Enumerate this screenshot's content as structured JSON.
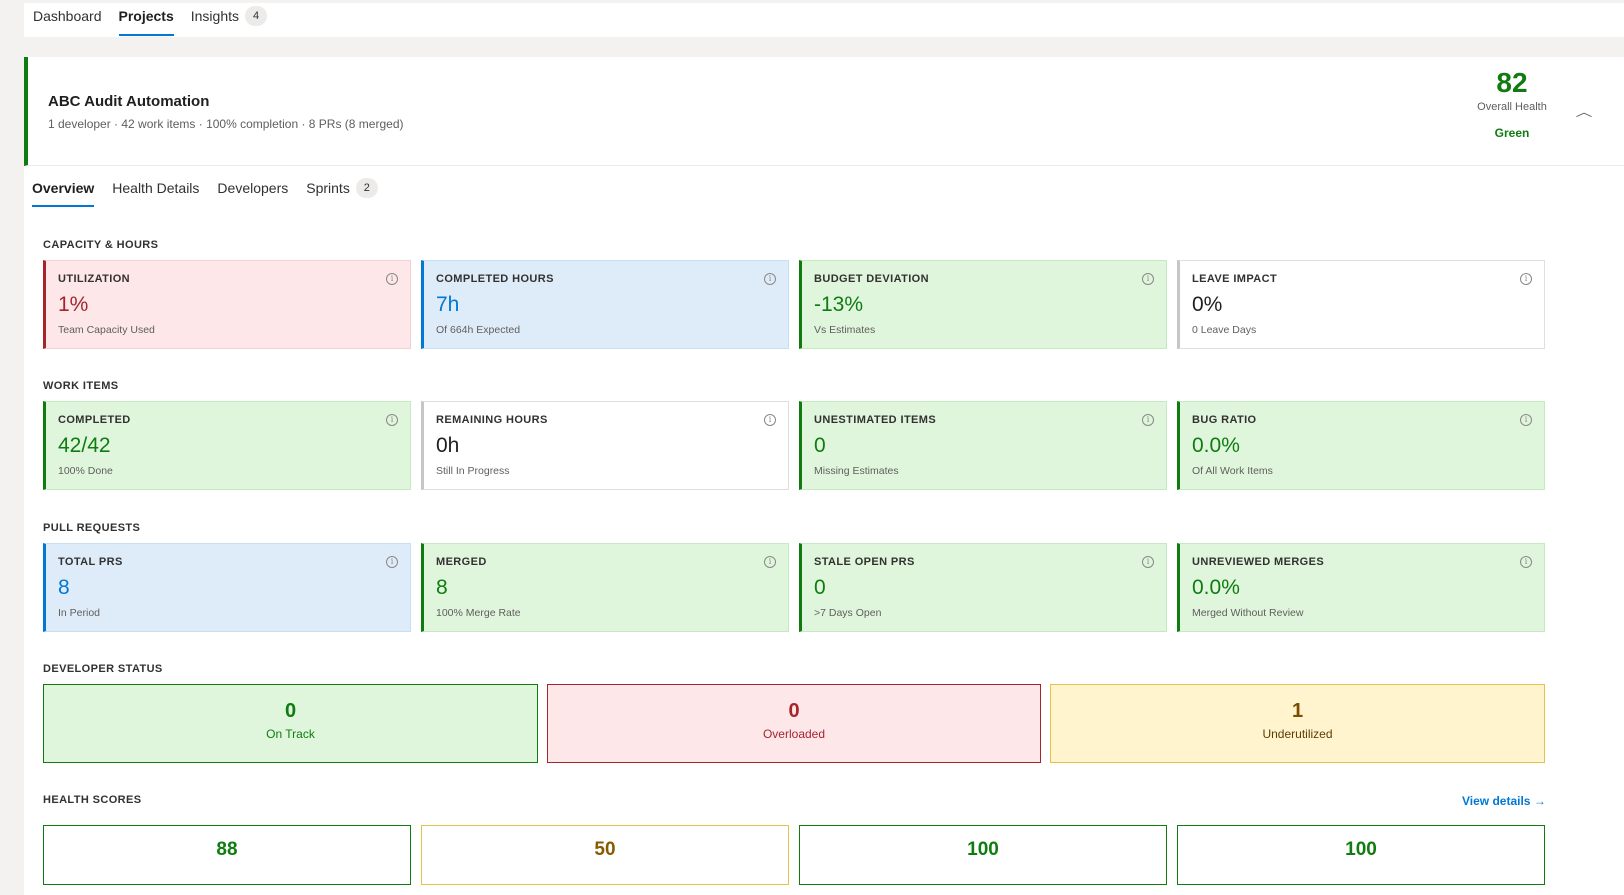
{
  "topnav": {
    "tabs": [
      {
        "label": "Dashboard"
      },
      {
        "label": "Projects"
      },
      {
        "label": "Insights",
        "badge": "4"
      }
    ]
  },
  "project": {
    "title": "ABC Audit Automation",
    "subtitle": "1 developer · 42 work items · 100% completion · 8 PRs (8 merged)",
    "health_score": "82",
    "health_label": "Overall Health",
    "health_status": "Green",
    "collapse_icon": "chevron-up-icon"
  },
  "subtabs": [
    {
      "label": "Overview"
    },
    {
      "label": "Health Details"
    },
    {
      "label": "Developers"
    },
    {
      "label": "Sprints",
      "badge": "2"
    }
  ],
  "sections": {
    "capacity": {
      "title": "CAPACITY & HOURS",
      "cards": [
        {
          "title": "UTILIZATION",
          "value": "1%",
          "sub": "Team Capacity Used",
          "tone": "red"
        },
        {
          "title": "COMPLETED HOURS",
          "value": "7h",
          "sub": "Of 664h Expected",
          "tone": "blue"
        },
        {
          "title": "BUDGET DEVIATION",
          "value": "-13%",
          "sub": "Vs Estimates",
          "tone": "green"
        },
        {
          "title": "LEAVE IMPACT",
          "value": "0%",
          "sub": "0 Leave Days",
          "tone": "neutral"
        }
      ]
    },
    "work_items": {
      "title": "WORK ITEMS",
      "cards": [
        {
          "title": "COMPLETED",
          "value": "42/42",
          "sub": "100% Done",
          "tone": "green"
        },
        {
          "title": "REMAINING HOURS",
          "value": "0h",
          "sub": "Still In Progress",
          "tone": "neutral"
        },
        {
          "title": "UNESTIMATED ITEMS",
          "value": "0",
          "sub": "Missing Estimates",
          "tone": "green"
        },
        {
          "title": "BUG RATIO",
          "value": "0.0%",
          "sub": "Of All Work Items",
          "tone": "green"
        }
      ]
    },
    "pull_requests": {
      "title": "PULL REQUESTS",
      "cards": [
        {
          "title": "TOTAL PRS",
          "value": "8",
          "sub": "In Period",
          "tone": "blue"
        },
        {
          "title": "MERGED",
          "value": "8",
          "sub": "100% Merge Rate",
          "tone": "green"
        },
        {
          "title": "STALE OPEN PRS",
          "value": "0",
          "sub": ">7 Days Open",
          "tone": "green"
        },
        {
          "title": "UNREVIEWED MERGES",
          "value": "0.0%",
          "sub": "Merged Without Review",
          "tone": "green"
        }
      ]
    },
    "developer_status": {
      "title": "DEVELOPER STATUS",
      "items": [
        {
          "value": "0",
          "label": "On Track",
          "tone": "green"
        },
        {
          "value": "0",
          "label": "Overloaded",
          "tone": "red"
        },
        {
          "value": "1",
          "label": "Underutilized",
          "tone": "yellow"
        }
      ]
    },
    "health_scores": {
      "title": "HEALTH SCORES",
      "view_details": "View details →",
      "scores": [
        {
          "value": "88",
          "tone": "green"
        },
        {
          "value": "50",
          "tone": "yellow"
        },
        {
          "value": "100",
          "tone": "green"
        },
        {
          "value": "100",
          "tone": "green"
        }
      ]
    }
  },
  "info_icon": "ⓘ",
  "colors": {
    "accent": "#0078d4",
    "green": "#107c10",
    "red": "#a4262c",
    "yellow_border": "#e5c34b"
  }
}
